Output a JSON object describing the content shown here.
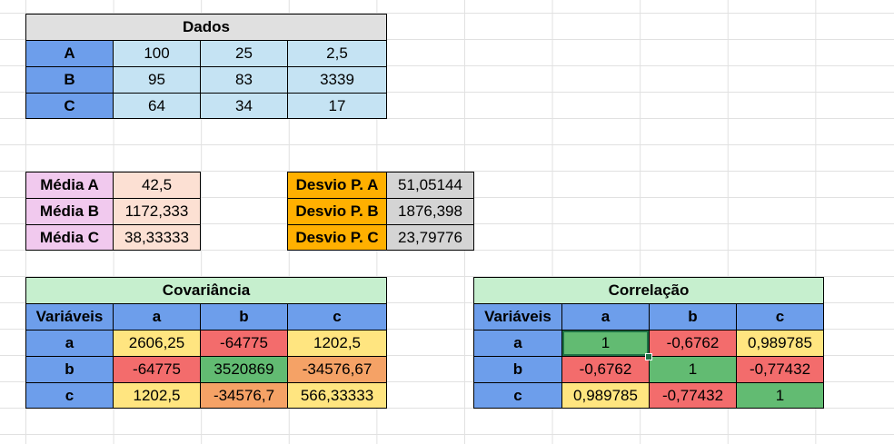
{
  "dados": {
    "title": "Dados",
    "rows": [
      {
        "label": "A",
        "values": [
          "100",
          "25",
          "2,5"
        ]
      },
      {
        "label": "B",
        "values": [
          "95",
          "83",
          "3339"
        ]
      },
      {
        "label": "C",
        "values": [
          "64",
          "34",
          "17"
        ]
      }
    ]
  },
  "medias": [
    {
      "label": "Média A",
      "value": "42,5"
    },
    {
      "label": "Média B",
      "value": "1172,333"
    },
    {
      "label": "Média C",
      "value": "38,33333"
    }
  ],
  "desvios": [
    {
      "label": "Desvio P. A",
      "value": "51,05144"
    },
    {
      "label": "Desvio P. B",
      "value": "1876,398"
    },
    {
      "label": "Desvio P. C",
      "value": "23,79776"
    }
  ],
  "covariancia": {
    "title": "Covariância",
    "corner": "Variáveis",
    "cols": [
      "a",
      "b",
      "c"
    ],
    "rows": [
      {
        "label": "a",
        "values": [
          "2606,25",
          "-64775",
          "1202,5"
        ]
      },
      {
        "label": "b",
        "values": [
          "-64775",
          "3520869",
          "-34576,67"
        ]
      },
      {
        "label": "c",
        "values": [
          "1202,5",
          "-34576,7",
          "566,33333"
        ]
      }
    ]
  },
  "correlacao": {
    "title": "Correlação",
    "corner": "Variáveis",
    "cols": [
      "a",
      "b",
      "c"
    ],
    "rows": [
      {
        "label": "a",
        "values": [
          "1",
          "-0,6762",
          "0,989785"
        ]
      },
      {
        "label": "b",
        "values": [
          "-0,6762",
          "1",
          "-0,77432"
        ]
      },
      {
        "label": "c",
        "values": [
          "0,989785",
          "-0,77432",
          "1"
        ]
      }
    ]
  }
}
